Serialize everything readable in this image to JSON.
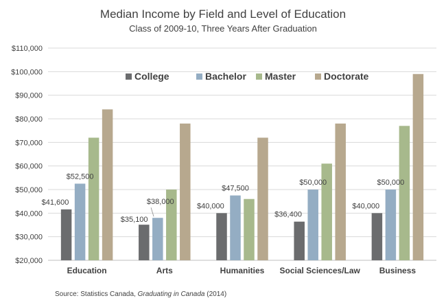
{
  "chart_data": {
    "type": "bar",
    "title": "Median Income by Field and Level of Education",
    "subtitle": "Class of 2009-10, Three Years After Graduation",
    "xlabel": "",
    "ylabel": "",
    "categories": [
      "Education",
      "Arts",
      "Humanities",
      "Social Sciences/Law",
      "Business"
    ],
    "series": [
      {
        "name": "College",
        "color": "#6b6c6e",
        "values": [
          41600,
          35100,
          40000,
          36400,
          40000
        ]
      },
      {
        "name": "Bachelor",
        "color": "#94adc3",
        "values": [
          52500,
          38000,
          47500,
          50000,
          50000
        ]
      },
      {
        "name": "Master",
        "color": "#a7b98c",
        "values": [
          72000,
          50000,
          46000,
          61000,
          77000
        ]
      },
      {
        "name": "Doctorate",
        "color": "#b7a88e",
        "values": [
          84000,
          78000,
          72000,
          78000,
          99000
        ]
      }
    ],
    "data_labels": [
      [
        "$41,600",
        "$52,500",
        null,
        null
      ],
      [
        "$35,100",
        "$38,000",
        null,
        null
      ],
      [
        "$40,000",
        "$47,500",
        null,
        null
      ],
      [
        "$36,400",
        "$50,000",
        null,
        null
      ],
      [
        "$40,000",
        "$50,000",
        null,
        null
      ]
    ],
    "ylim": [
      20000,
      110000
    ],
    "ytick_labels": [
      "$20,000",
      "$30,000",
      "$40,000",
      "$50,000",
      "$60,000",
      "$70,000",
      "$80,000",
      "$90,000",
      "$100,000",
      "$110,000"
    ],
    "grid": true,
    "legend_position": "top-center"
  },
  "source": {
    "prefix": "Source: Statistics Canada, ",
    "title": "Graduating in Canada",
    "suffix": " (2014)"
  }
}
